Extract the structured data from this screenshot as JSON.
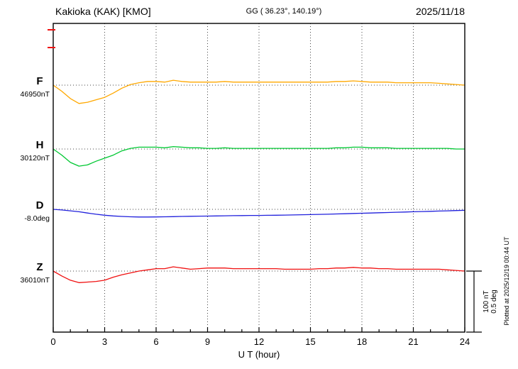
{
  "header": {
    "station": "Kakioka (KAK)  [KMO]",
    "coords": "GG ( 36.23°, 140.19°)",
    "date": "2025/11/18"
  },
  "footer": {
    "xlabel": "U T (hour)"
  },
  "right_side": {
    "scale_nT": "100 nT",
    "scale_deg": "0.5 deg",
    "plotted_at": "Plotted at 2025/12/19 00:44 UT"
  },
  "chart_data": {
    "type": "line",
    "title": "Kakioka (KAK) [KMO] magnetogram 2025/11/18",
    "xlabel": "U T (hour)",
    "xlim": [
      0,
      24
    ],
    "x_ticks": [
      0,
      3,
      6,
      9,
      12,
      15,
      18,
      21,
      24
    ],
    "x_step_hours": 0.5,
    "grid": "dotted vertical lines every 3 h; dotted horizontal baseline per trace",
    "legend_position": "left of axis, one colored letter per trace",
    "scale": {
      "nT_per_div": 100,
      "deg_per_div": 0.5
    },
    "series": [
      {
        "name": "F",
        "unit": "nT",
        "baseline_value": 46950,
        "base_label": "46950nT",
        "color": "#FFA800",
        "values": [
          0,
          -10,
          -22,
          -30,
          -28,
          -24,
          -20,
          -13,
          -5,
          1,
          4,
          6,
          6,
          5,
          8,
          6,
          5,
          5,
          5,
          5,
          6,
          5,
          5,
          5,
          5,
          5,
          5,
          5,
          5,
          5,
          5,
          5,
          5,
          6,
          6,
          7,
          6,
          5,
          5,
          5,
          4,
          4,
          4,
          4,
          4,
          3,
          2,
          1,
          0
        ]
      },
      {
        "name": "H",
        "unit": "nT",
        "baseline_value": 30120,
        "base_label": "30120nT",
        "color": "#00C832",
        "values": [
          0,
          -10,
          -22,
          -28,
          -26,
          -20,
          -15,
          -10,
          -3,
          1,
          3,
          3,
          3,
          2,
          4,
          3,
          2,
          2,
          1,
          1,
          2,
          1,
          1,
          1,
          1,
          1,
          1,
          1,
          1,
          1,
          1,
          1,
          1,
          2,
          2,
          3,
          3,
          2,
          2,
          2,
          1,
          1,
          1,
          1,
          1,
          1,
          1,
          0,
          0
        ]
      },
      {
        "name": "D",
        "unit": "deg",
        "baseline_value": -8.0,
        "base_label": "-8.0deg",
        "color": "#2020DC",
        "values": [
          0,
          -0.005,
          -0.012,
          -0.02,
          -0.03,
          -0.04,
          -0.048,
          -0.054,
          -0.058,
          -0.061,
          -0.063,
          -0.063,
          -0.062,
          -0.061,
          -0.06,
          -0.058,
          -0.057,
          -0.056,
          -0.055,
          -0.054,
          -0.053,
          -0.052,
          -0.051,
          -0.05,
          -0.05,
          -0.049,
          -0.048,
          -0.047,
          -0.046,
          -0.044,
          -0.043,
          -0.041,
          -0.04,
          -0.038,
          -0.036,
          -0.034,
          -0.032,
          -0.03,
          -0.028,
          -0.026,
          -0.024,
          -0.022,
          -0.02,
          -0.018,
          -0.016,
          -0.014,
          -0.012,
          -0.01,
          -0.008
        ]
      },
      {
        "name": "Z",
        "unit": "nT",
        "baseline_value": 36010,
        "base_label": "36010nT",
        "color": "#F01010",
        "values": [
          0,
          -8,
          -15,
          -19,
          -18,
          -17,
          -15,
          -10,
          -6,
          -3,
          0,
          2,
          4,
          4,
          7,
          5,
          3,
          4,
          5,
          5,
          5,
          4,
          4,
          4,
          4,
          4,
          4,
          3,
          3,
          3,
          3,
          4,
          4,
          5,
          5,
          6,
          5,
          5,
          4,
          4,
          3,
          3,
          3,
          3,
          3,
          3,
          2,
          1,
          0
        ]
      }
    ]
  }
}
